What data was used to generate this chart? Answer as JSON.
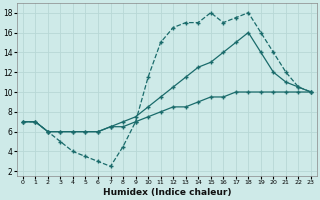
{
  "xlabel": "Humidex (Indice chaleur)",
  "bg_color": "#ceeae8",
  "grid_color": "#b8d8d6",
  "line_color": "#1a6b6b",
  "xlim": [
    -0.5,
    23.5
  ],
  "ylim": [
    1.5,
    19
  ],
  "yticks": [
    2,
    4,
    6,
    8,
    10,
    12,
    14,
    16,
    18
  ],
  "xticks": [
    0,
    1,
    2,
    3,
    4,
    5,
    6,
    7,
    8,
    9,
    10,
    11,
    12,
    13,
    14,
    15,
    16,
    17,
    18,
    19,
    20,
    21,
    22,
    23
  ],
  "line1_x": [
    0,
    1,
    2,
    3,
    4,
    5,
    6,
    7,
    8,
    9,
    10,
    11,
    12,
    13,
    14,
    15,
    16,
    17,
    18,
    19,
    20,
    21,
    22,
    23
  ],
  "line1_y": [
    7,
    7,
    6,
    5,
    4,
    3.5,
    3,
    2.5,
    4.5,
    7,
    11.5,
    15,
    16.5,
    17,
    17,
    18,
    17,
    17.5,
    18,
    16,
    14,
    12,
    10.5,
    10
  ],
  "line2_x": [
    0,
    1,
    2,
    3,
    4,
    5,
    6,
    7,
    8,
    9,
    10,
    11,
    12,
    13,
    14,
    15,
    16,
    17,
    18,
    19,
    20,
    21,
    22,
    23
  ],
  "line2_y": [
    7,
    7,
    6,
    6,
    6,
    6,
    6,
    6.5,
    7,
    7.5,
    8.5,
    9.5,
    10.5,
    11.5,
    12.5,
    13,
    14,
    15,
    16,
    14,
    12,
    11,
    10.5,
    10
  ],
  "line3_x": [
    0,
    1,
    2,
    3,
    4,
    5,
    6,
    7,
    8,
    9,
    10,
    11,
    12,
    13,
    14,
    15,
    16,
    17,
    18,
    19,
    20,
    21,
    22,
    23
  ],
  "line3_y": [
    7,
    7,
    6,
    6,
    6,
    6,
    6,
    6.5,
    6.5,
    7,
    7.5,
    8,
    8.5,
    8.5,
    9,
    9.5,
    9.5,
    10,
    10,
    10,
    10,
    10,
    10,
    10
  ]
}
